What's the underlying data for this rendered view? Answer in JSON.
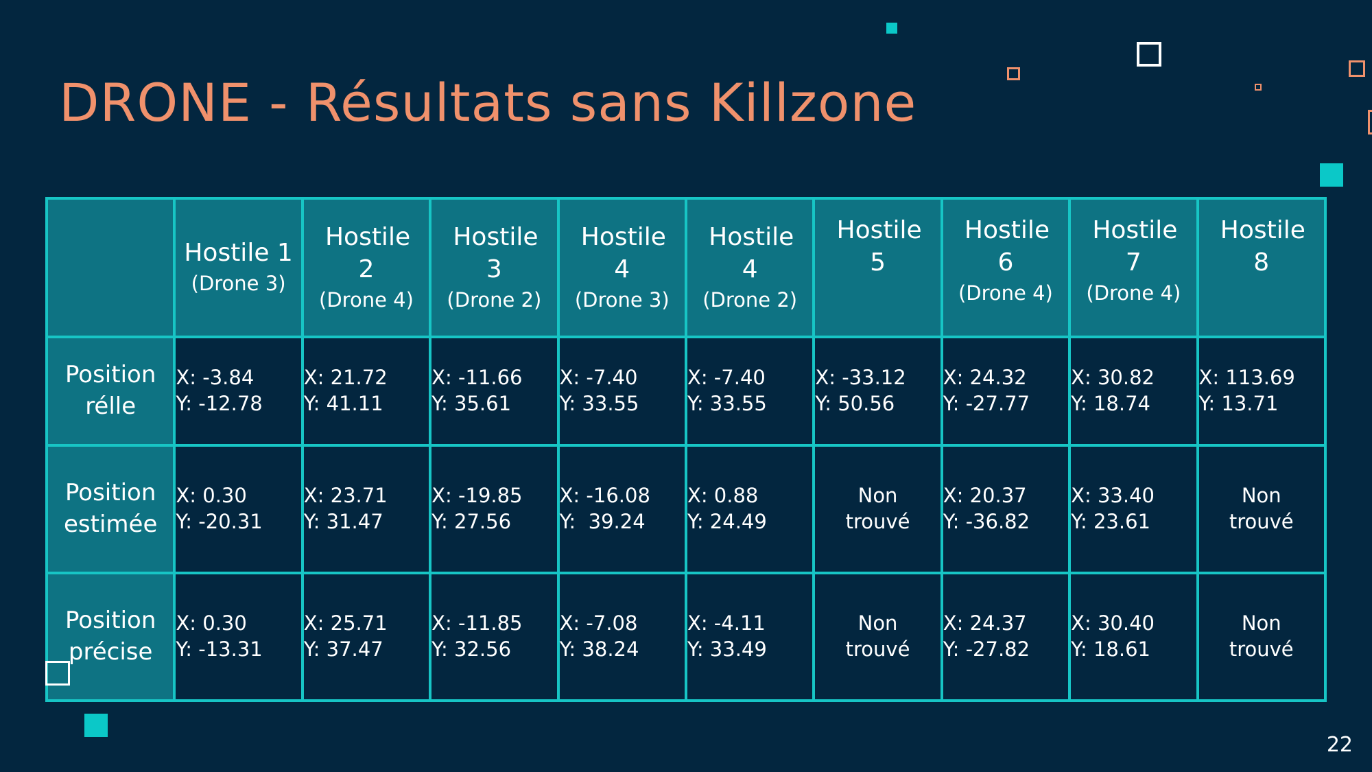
{
  "slide": {
    "title": "DRONE - Résultats sans Killzone",
    "page_number": "22"
  },
  "table": {
    "columns": [
      {
        "name": "Hostile 1",
        "drone": "(Drone 3)"
      },
      {
        "name": "Hostile 2",
        "drone": "(Drone 4)"
      },
      {
        "name": "Hostile 3",
        "drone": "(Drone 2)"
      },
      {
        "name": "Hostile 4",
        "drone": "(Drone 3)"
      },
      {
        "name": "Hostile 4",
        "drone": "(Drone 2)"
      },
      {
        "name": "Hostile 5",
        "drone": ""
      },
      {
        "name": "Hostile 6",
        "drone": "(Drone 4)"
      },
      {
        "name": "Hostile 7",
        "drone": "(Drone 4)"
      },
      {
        "name": "Hostile 8",
        "drone": ""
      }
    ],
    "rows": [
      {
        "label": "Position rélle",
        "cells": [
          {
            "x": "X: -3.84",
            "y": "Y: -12.78"
          },
          {
            "x": "X: 21.72",
            "y": "Y: 41.11"
          },
          {
            "x": "X: -11.66",
            "y": "Y: 35.61"
          },
          {
            "x": "X: -7.40",
            "y": "Y: 33.55"
          },
          {
            "x": "X: -7.40",
            "y": "Y: 33.55"
          },
          {
            "x": "X: -33.12",
            "y": "Y: 50.56"
          },
          {
            "x": "X: 24.32",
            "y": "Y: -27.77"
          },
          {
            "x": "X: 30.82",
            "y": "Y: 18.74"
          },
          {
            "x": "X: 113.69",
            "y": "Y: 13.71"
          }
        ]
      },
      {
        "label": "Position estimée",
        "cells": [
          {
            "x": "X: 0.30",
            "y": "Y: -20.31"
          },
          {
            "x": "X: 23.71",
            "y": "Y: 31.47"
          },
          {
            "x": "X: -19.85",
            "y": "Y: 27.56"
          },
          {
            "x": "X: -16.08",
            "y": "Y:  39.24"
          },
          {
            "x": "X: 0.88",
            "y": "Y: 24.49"
          },
          {
            "x": "Non",
            "y": "trouvé"
          },
          {
            "x": "X: 20.37",
            "y": "Y: -36.82"
          },
          {
            "x": "X: 33.40",
            "y": "Y: 23.61"
          },
          {
            "x": "Non",
            "y": "trouvé"
          }
        ]
      },
      {
        "label": "Position précise",
        "cells": [
          {
            "x": "X: 0.30",
            "y": "Y: -13.31"
          },
          {
            "x": "X: 25.71",
            "y": "Y: 37.47"
          },
          {
            "x": "X: -11.85",
            "y": "Y: 32.56"
          },
          {
            "x": "X: -7.08",
            "y": "Y: 38.24"
          },
          {
            "x": "X: -4.11",
            "y": "Y: 33.49"
          },
          {
            "x": "Non",
            "y": "trouvé"
          },
          {
            "x": "X: 24.37",
            "y": "Y: -27.82"
          },
          {
            "x": "X: 30.40",
            "y": "Y: 18.61"
          },
          {
            "x": "Non",
            "y": "trouvé"
          }
        ]
      }
    ]
  },
  "colors": {
    "background": "#03263f",
    "title": "#f0916c",
    "header_fill": "#0e7383",
    "grid": "#17c5c5",
    "accent_cyan": "#0bc8c8"
  }
}
